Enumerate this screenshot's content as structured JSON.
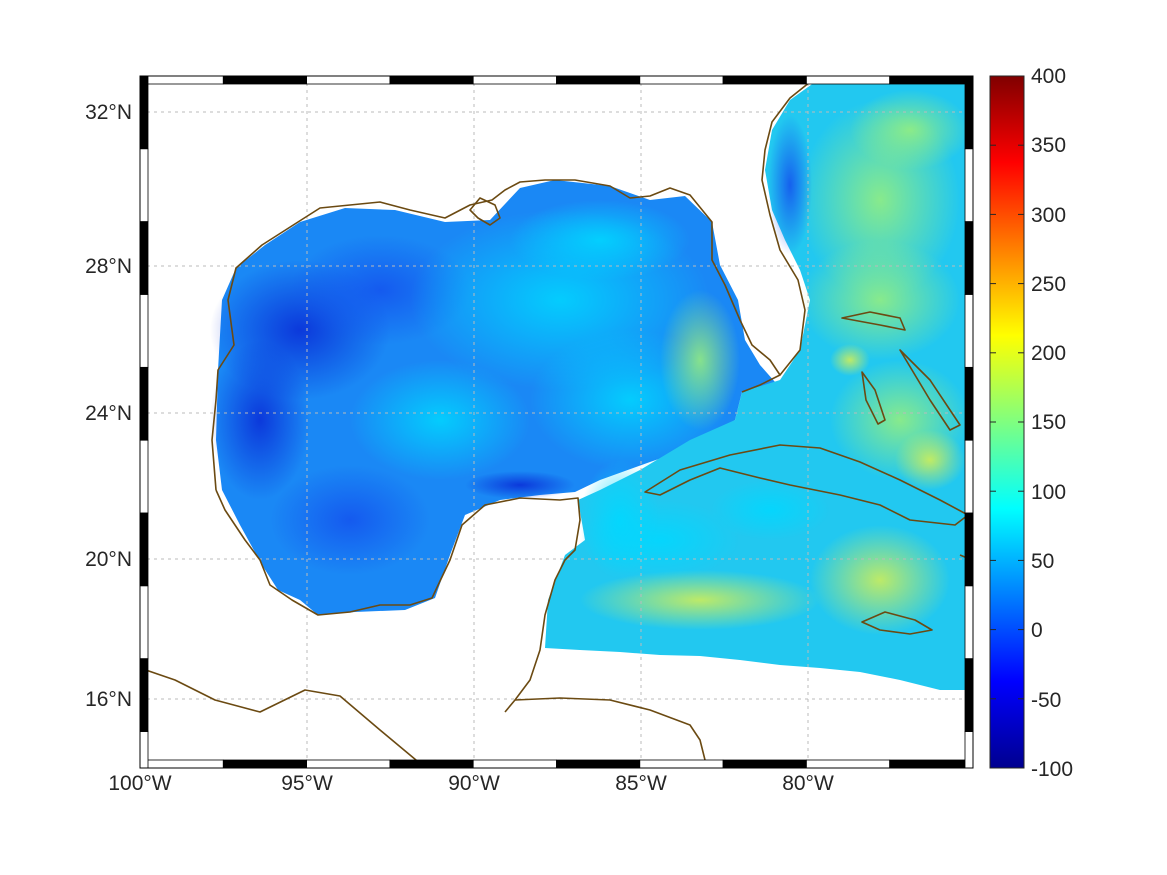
{
  "map": {
    "lon_ticks": [
      "100°W",
      "95°W",
      "90°W",
      "85°W",
      "80°W"
    ],
    "lat_ticks": [
      "32°N",
      "28°N",
      "24°N",
      "20°N",
      "16°N"
    ],
    "lon_range": [
      -100,
      -75
    ],
    "lat_range": [
      14.3,
      33
    ],
    "grid": true,
    "frame_style": "alternating black-white border"
  },
  "colorbar": {
    "ticks": [
      "400",
      "350",
      "300",
      "250",
      "200",
      "150",
      "100",
      "50",
      "0",
      "-50",
      "-100"
    ],
    "range": [
      -100,
      400
    ],
    "colormap": "jet"
  },
  "colors": {
    "coastline": "#6b4a12",
    "gridline": "#bbbbbb",
    "frame": "#000000"
  }
}
